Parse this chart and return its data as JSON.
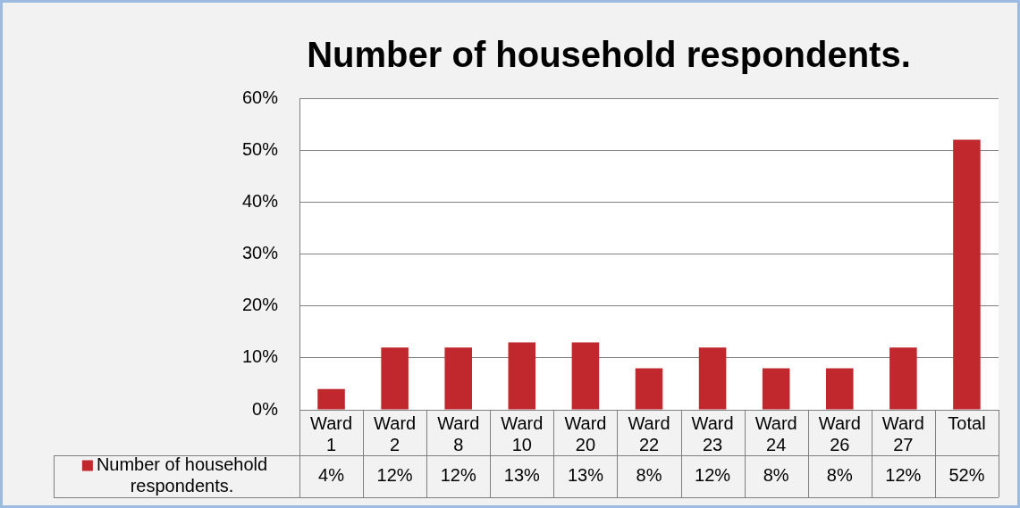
{
  "chart_data": {
    "type": "bar",
    "title": "Number of household respondents.",
    "categories": [
      "Ward 1",
      "Ward 2",
      "Ward 8",
      "Ward 10",
      "Ward 20",
      "Ward 22",
      "Ward 23",
      "Ward 24",
      "Ward 26",
      "Ward 27",
      "Total"
    ],
    "series": [
      {
        "name": "Number of household respondents.",
        "color": "#c0282d",
        "values": [
          4,
          12,
          12,
          13,
          13,
          8,
          12,
          8,
          8,
          12,
          52
        ],
        "value_labels": [
          "4%",
          "12%",
          "12%",
          "13%",
          "13%",
          "8%",
          "12%",
          "8%",
          "8%",
          "12%",
          "52%"
        ]
      }
    ],
    "ylim": [
      0,
      60
    ],
    "yticks": [
      {
        "value": 0,
        "label": "0%"
      },
      {
        "value": 10,
        "label": "10%"
      },
      {
        "value": 20,
        "label": "20%"
      },
      {
        "value": 30,
        "label": "30%"
      },
      {
        "value": 40,
        "label": "40%"
      },
      {
        "value": 50,
        "label": "50%"
      },
      {
        "value": 60,
        "label": "60%"
      }
    ],
    "grid": "y",
    "legend": "bottom left"
  }
}
